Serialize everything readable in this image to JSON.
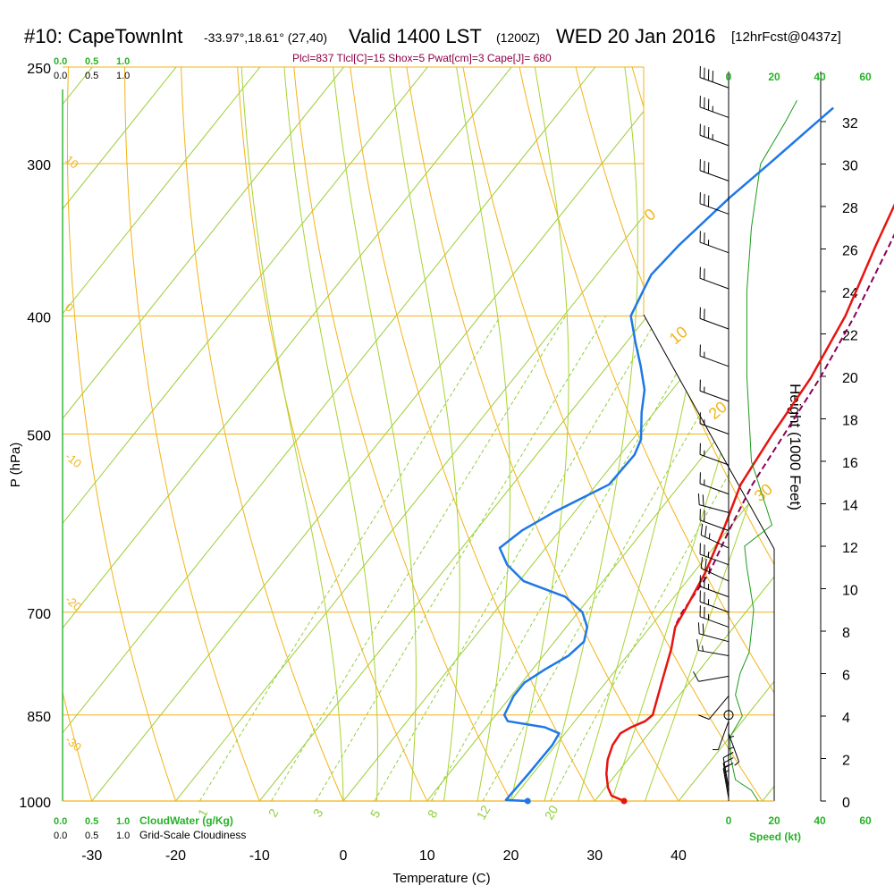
{
  "header": {
    "station": "#10: CapeTownInt",
    "coords": "-33.97°,18.61° (27,40)",
    "valid": "Valid 1400 LST",
    "utc": "(1200Z)",
    "date": "WED 20 Jan 2016",
    "forecast": "[12hrFcst@0437z]"
  },
  "parcel_info": "Plcl=837 Tlcl[C]=15 Shox=5 Pwat[cm]=3 Cape[J]= 680",
  "colors": {
    "isotherm": "#9acd32",
    "isobar_dryadiabat": "#f2b417",
    "mixing_ratio": "#8fcf3a",
    "temperature": "#e8140f",
    "dewpoint": "#1e78e6",
    "parcel": "#8b0057",
    "wind_speed": "#1b9a1b",
    "legend_green": "#27b227",
    "boxline": "#000000"
  },
  "chart_data": {
    "type": "line",
    "title": "#10: CapeTownInt Valid 1400 LST (1200Z) WED 20 Jan 2016",
    "xlabel": "Temperature (C)",
    "ylabel": "P (hPa)",
    "y2label": "Height (1000 Feet)",
    "x_ticks": [
      "-30",
      "-20",
      "-10",
      "0",
      "10",
      "20",
      "30",
      "40"
    ],
    "xlim": [
      -35,
      45
    ],
    "p_ticks": [
      "250",
      "300",
      "400",
      "500",
      "700",
      "850",
      "1000"
    ],
    "ylim_hpa": [
      1000,
      250
    ],
    "y_log_pressure": true,
    "height_ticks": [
      "0",
      "2",
      "4",
      "6",
      "8",
      "10",
      "12",
      "14",
      "16",
      "18",
      "20",
      "22",
      "24",
      "26",
      "28",
      "30",
      "32"
    ],
    "isotherm_labels": [
      "0",
      "10",
      "20",
      "30"
    ],
    "dry_adiabat_labels": [
      "10",
      "0",
      "-10",
      "-20",
      "-30"
    ],
    "mixing_ratio_labels": [
      "1",
      "2",
      "3",
      "5",
      "8",
      "12",
      "20"
    ],
    "cloud_scale": {
      "top_green": [
        "0.0",
        "0.5",
        "1.0"
      ],
      "top_black": [
        "0.0",
        "0.5",
        "1.0"
      ],
      "bottom_green": [
        "0.0",
        "0.5",
        "1.0"
      ],
      "bottom_black": [
        "0.0",
        "0.5",
        "1.0"
      ],
      "cloud_water_label": "CloudWater (g/Kg)",
      "cloudiness_label": "Grid-Scale Cloudiness"
    },
    "wind_speed_ticks": [
      "0",
      "20",
      "40",
      "60"
    ],
    "wind_speed_label": "Speed (kt)",
    "temperature": {
      "name": "Temperature",
      "points": [
        [
          1000,
          33.5
        ],
        [
          990,
          31.5
        ],
        [
          975,
          30.3
        ],
        [
          950,
          28.8
        ],
        [
          925,
          27.6
        ],
        [
          900,
          26.8
        ],
        [
          880,
          26.6
        ],
        [
          870,
          27.3
        ],
        [
          860,
          28.4
        ],
        [
          850,
          28.7
        ],
        [
          800,
          26.7
        ],
        [
          750,
          24.6
        ],
        [
          720,
          23.0
        ],
        [
          700,
          22.6
        ],
        [
          650,
          21.4
        ],
        [
          600,
          19.5
        ],
        [
          550,
          17.2
        ],
        [
          500,
          16.2
        ],
        [
          450,
          15.4
        ],
        [
          400,
          13.6
        ],
        [
          350,
          10.5
        ],
        [
          300,
          7.2
        ],
        [
          270,
          5.6
        ]
      ]
    },
    "dewpoint": {
      "name": "Dewpoint",
      "points": [
        [
          1000,
          22.0
        ],
        [
          998,
          19.3
        ],
        [
          950,
          19.5
        ],
        [
          900,
          19.6
        ],
        [
          880,
          19.3
        ],
        [
          870,
          17.0
        ],
        [
          860,
          12.0
        ],
        [
          850,
          11.0
        ],
        [
          820,
          10.3
        ],
        [
          800,
          10.3
        ],
        [
          780,
          11.5
        ],
        [
          760,
          13.0
        ],
        [
          740,
          13.5
        ],
        [
          720,
          12.5
        ],
        [
          700,
          10.5
        ],
        [
          680,
          7.0
        ],
        [
          660,
          0.5
        ],
        [
          640,
          -3.0
        ],
        [
          620,
          -5.5
        ],
        [
          600,
          -4.5
        ],
        [
          580,
          -2.5
        ],
        [
          550,
          1.5
        ],
        [
          520,
          1.7
        ],
        [
          505,
          1.0
        ],
        [
          480,
          -1.5
        ],
        [
          460,
          -3.3
        ],
        [
          440,
          -6.0
        ],
        [
          420,
          -9.0
        ],
        [
          400,
          -12.0
        ],
        [
          380,
          -13.0
        ],
        [
          370,
          -13.5
        ],
        [
          350,
          -13.0
        ],
        [
          320,
          -11.5
        ],
        [
          300,
          -10.0
        ],
        [
          280,
          -8.5
        ],
        [
          270,
          -7.7
        ]
      ]
    },
    "parcel": {
      "name": "Parcel",
      "points": [
        [
          715,
          22.8
        ],
        [
          700,
          22.4
        ],
        [
          650,
          21.9
        ],
        [
          600,
          20.2
        ],
        [
          550,
          18.6
        ],
        [
          500,
          17.6
        ],
        [
          450,
          16.5
        ],
        [
          400,
          14.7
        ],
        [
          350,
          12.1
        ],
        [
          300,
          8.9
        ],
        [
          270,
          6.7
        ]
      ]
    },
    "surface_points": {
      "temperature_c": 33.5,
      "dewpoint_c": 22.0,
      "pressure_hpa": 1000
    },
    "wind_speed_profile": {
      "name": "Wind speed",
      "units": "kt",
      "points": [
        [
          0,
          13
        ],
        [
          0.5,
          10
        ],
        [
          1,
          3
        ],
        [
          2,
          1
        ],
        [
          3,
          0.5
        ],
        [
          4,
          6
        ],
        [
          5,
          3
        ],
        [
          6,
          5
        ],
        [
          7,
          9
        ],
        [
          9,
          11
        ],
        [
          11,
          8
        ],
        [
          12,
          7
        ],
        [
          13,
          19
        ],
        [
          14,
          16
        ],
        [
          16,
          10
        ],
        [
          20,
          8
        ],
        [
          24,
          8
        ],
        [
          27,
          10
        ],
        [
          30,
          14
        ],
        [
          32,
          25
        ],
        [
          33,
          30
        ]
      ]
    },
    "wind_barbs": {
      "units": "kt",
      "barbs": [
        [
          995,
          15,
          350
        ],
        [
          985,
          15,
          350
        ],
        [
          975,
          10,
          350
        ],
        [
          960,
          5,
          0
        ],
        [
          940,
          5,
          0
        ],
        [
          880,
          5,
          160
        ],
        [
          860,
          5,
          200
        ],
        [
          850,
          0,
          0
        ],
        [
          820,
          10,
          220
        ],
        [
          790,
          10,
          260
        ],
        [
          760,
          15,
          280
        ],
        [
          740,
          20,
          285
        ],
        [
          720,
          25,
          290
        ],
        [
          700,
          25,
          290
        ],
        [
          680,
          25,
          290
        ],
        [
          660,
          25,
          295
        ],
        [
          640,
          25,
          290
        ],
        [
          620,
          25,
          295
        ],
        [
          600,
          20,
          290
        ],
        [
          580,
          20,
          285
        ],
        [
          560,
          15,
          290
        ],
        [
          530,
          15,
          290
        ],
        [
          500,
          15,
          290
        ],
        [
          470,
          15,
          290
        ],
        [
          440,
          15,
          290
        ],
        [
          410,
          20,
          290
        ],
        [
          380,
          20,
          290
        ],
        [
          355,
          25,
          290
        ],
        [
          330,
          30,
          290
        ],
        [
          310,
          30,
          290
        ],
        [
          290,
          35,
          290
        ],
        [
          275,
          35,
          290
        ],
        [
          260,
          40,
          290
        ]
      ]
    },
    "legend": "none",
    "grid": true
  }
}
